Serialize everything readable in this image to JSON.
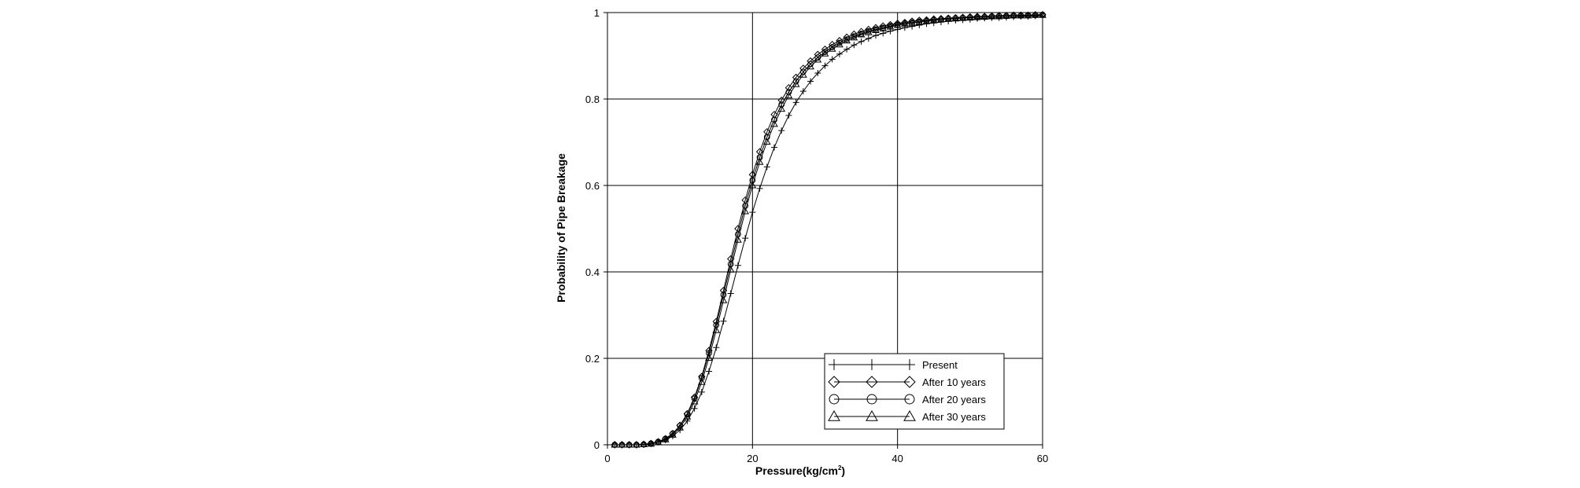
{
  "chart_data": {
    "type": "line",
    "xlabel_main": "Pressure(kg/cm",
    "xlabel_sup": "2",
    "xlabel_tail": ")",
    "ylabel": "Probability of Pipe Breakage",
    "xlim": [
      0,
      60
    ],
    "ylim": [
      0,
      1
    ],
    "xticks": [
      "0",
      "20",
      "40",
      "60"
    ],
    "yticks": [
      "0",
      "0.2",
      "0.4",
      "0.6",
      "0.8",
      "1"
    ],
    "grid": true,
    "legend_position": "bottom-right",
    "x": [
      1,
      2,
      3,
      4,
      5,
      6,
      7,
      8,
      9,
      10,
      11,
      12,
      13,
      14,
      15,
      16,
      17,
      18,
      19,
      20,
      21,
      22,
      23,
      24,
      25,
      26,
      27,
      28,
      29,
      30,
      31,
      32,
      33,
      34,
      35,
      36,
      37,
      38,
      39,
      40,
      41,
      42,
      43,
      44,
      45,
      46,
      47,
      48,
      49,
      50,
      51,
      52,
      53,
      54,
      55,
      56,
      57,
      58,
      59,
      60
    ],
    "series": [
      {
        "name": "Present",
        "marker": "plus",
        "values": [
          0.0,
          0.0,
          0.0,
          0.0,
          0.001,
          0.003,
          0.006,
          0.011,
          0.02,
          0.034,
          0.055,
          0.084,
          0.122,
          0.17,
          0.225,
          0.286,
          0.35,
          0.415,
          0.478,
          0.538,
          0.593,
          0.643,
          0.688,
          0.727,
          0.762,
          0.792,
          0.818,
          0.841,
          0.86,
          0.877,
          0.892,
          0.904,
          0.915,
          0.925,
          0.933,
          0.94,
          0.947,
          0.952,
          0.957,
          0.961,
          0.965,
          0.968,
          0.971,
          0.974,
          0.976,
          0.978,
          0.98,
          0.982,
          0.983,
          0.984,
          0.986,
          0.987,
          0.988,
          0.988,
          0.989,
          0.99,
          0.991,
          0.991,
          0.992,
          0.992
        ]
      },
      {
        "name": "After 10 years",
        "marker": "diamond",
        "values": [
          0.0,
          0.0,
          0.0,
          0.0,
          0.001,
          0.003,
          0.007,
          0.014,
          0.026,
          0.045,
          0.072,
          0.11,
          0.158,
          0.218,
          0.285,
          0.357,
          0.43,
          0.5,
          0.566,
          0.625,
          0.678,
          0.724,
          0.764,
          0.797,
          0.826,
          0.85,
          0.871,
          0.888,
          0.903,
          0.915,
          0.926,
          0.935,
          0.943,
          0.95,
          0.956,
          0.961,
          0.965,
          0.969,
          0.972,
          0.975,
          0.977,
          0.98,
          0.982,
          0.983,
          0.985,
          0.986,
          0.987,
          0.988,
          0.989,
          0.99,
          0.991,
          0.991,
          0.992,
          0.993,
          0.993,
          0.994,
          0.994,
          0.994,
          0.995,
          0.995
        ]
      },
      {
        "name": "After 20 years",
        "marker": "circle",
        "values": [
          0.0,
          0.0,
          0.0,
          0.0,
          0.001,
          0.003,
          0.007,
          0.014,
          0.026,
          0.044,
          0.07,
          0.107,
          0.154,
          0.212,
          0.277,
          0.347,
          0.418,
          0.487,
          0.553,
          0.612,
          0.665,
          0.712,
          0.752,
          0.787,
          0.816,
          0.841,
          0.863,
          0.881,
          0.896,
          0.909,
          0.92,
          0.93,
          0.938,
          0.945,
          0.951,
          0.957,
          0.961,
          0.965,
          0.969,
          0.972,
          0.975,
          0.977,
          0.979,
          0.981,
          0.983,
          0.984,
          0.986,
          0.987,
          0.988,
          0.989,
          0.989,
          0.99,
          0.991,
          0.992,
          0.992,
          0.993,
          0.993,
          0.994,
          0.994,
          0.995
        ]
      },
      {
        "name": "After 30 years",
        "marker": "triangle",
        "values": [
          0.0,
          0.0,
          0.0,
          0.0,
          0.001,
          0.002,
          0.006,
          0.012,
          0.023,
          0.04,
          0.065,
          0.1,
          0.145,
          0.201,
          0.265,
          0.334,
          0.405,
          0.474,
          0.54,
          0.6,
          0.654,
          0.701,
          0.742,
          0.777,
          0.808,
          0.834,
          0.856,
          0.875,
          0.891,
          0.905,
          0.916,
          0.926,
          0.935,
          0.942,
          0.949,
          0.954,
          0.959,
          0.963,
          0.967,
          0.971,
          0.974,
          0.976,
          0.978,
          0.98,
          0.982,
          0.984,
          0.985,
          0.986,
          0.987,
          0.988,
          0.989,
          0.99,
          0.991,
          0.991,
          0.992,
          0.993,
          0.993,
          0.993,
          0.994,
          0.994
        ]
      }
    ]
  }
}
